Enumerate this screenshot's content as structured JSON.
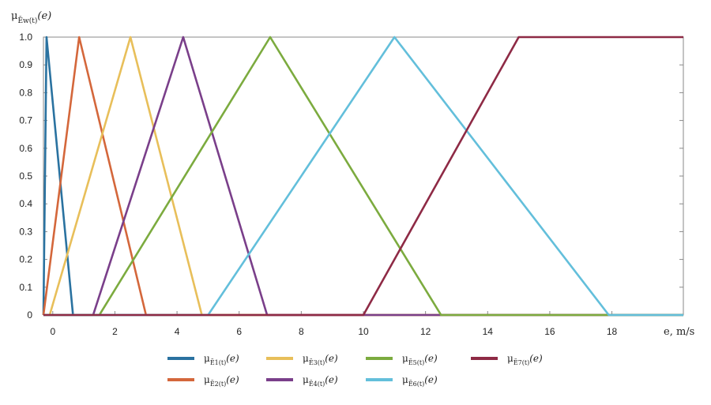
{
  "chart_data": {
    "type": "line",
    "ylabel_main": "μ",
    "ylabel_sub": "Ẽw(t)",
    "ylabel_arg": "(e)",
    "xlabel": "e, m/s",
    "xlim": [
      -0.3,
      20.3
    ],
    "ylim": [
      0,
      1.0
    ],
    "x_ticks": [
      0,
      2,
      4,
      6,
      8,
      10,
      12,
      14,
      16,
      18
    ],
    "y_ticks": [
      0,
      0.1,
      0.2,
      0.3,
      0.4,
      0.5,
      0.6,
      0.7,
      0.8,
      0.9,
      1.0
    ],
    "x_tick_labels": [
      "0",
      "2",
      "4",
      "6",
      "8",
      "10",
      "12",
      "14",
      "16",
      "18"
    ],
    "y_tick_labels": [
      "0",
      "0.1",
      "0.2",
      "0.3",
      "0.4",
      "0.5",
      "0.6",
      "0.7",
      "0.8",
      "0.9",
      "1.0"
    ],
    "grid": false,
    "legend_placement": "bottom",
    "series": [
      {
        "name_main": "μ",
        "name_sub": "Ẽ1(t)",
        "name_arg": "(e)",
        "color": "#2a72a0",
        "x": [
          -0.3,
          -0.2,
          0.65,
          20.3
        ],
        "y": [
          0,
          1,
          0,
          0
        ]
      },
      {
        "name_main": "μ",
        "name_sub": "Ẽ2(t)",
        "name_arg": "(e)",
        "color": "#d4673b",
        "x": [
          -0.3,
          0.85,
          3.0,
          20.3
        ],
        "y": [
          0,
          1,
          0,
          0
        ]
      },
      {
        "name_main": "μ",
        "name_sub": "Ẽ3(t)",
        "name_arg": "(e)",
        "color": "#e8bf5a",
        "x": [
          -0.3,
          -0.1,
          2.5,
          4.8,
          20.3
        ],
        "y": [
          0,
          0,
          1,
          0,
          0
        ]
      },
      {
        "name_main": "μ",
        "name_sub": "Ẽ4(t)",
        "name_arg": "(e)",
        "color": "#7a3f8a",
        "x": [
          -0.3,
          1.3,
          4.2,
          6.9,
          20.3
        ],
        "y": [
          0,
          0,
          1,
          0,
          0
        ]
      },
      {
        "name_main": "μ",
        "name_sub": "Ẽ5(t)",
        "name_arg": "(e)",
        "color": "#7cab3f",
        "x": [
          -0.3,
          1.5,
          7.0,
          12.5,
          20.3
        ],
        "y": [
          0,
          0,
          1,
          0,
          0
        ]
      },
      {
        "name_main": "μ",
        "name_sub": "Ẽ6(t)",
        "name_arg": "(e)",
        "color": "#63bfdb",
        "x": [
          -0.3,
          5.0,
          11.0,
          17.9,
          20.3
        ],
        "y": [
          0,
          0,
          1,
          0,
          0
        ]
      },
      {
        "name_main": "μ",
        "name_sub": "Ẽ7(t)",
        "name_arg": "(e)",
        "color": "#8e2a45",
        "x": [
          -0.3,
          10.0,
          15.0,
          20.3
        ],
        "y": [
          0,
          0,
          1,
          1
        ]
      }
    ]
  }
}
